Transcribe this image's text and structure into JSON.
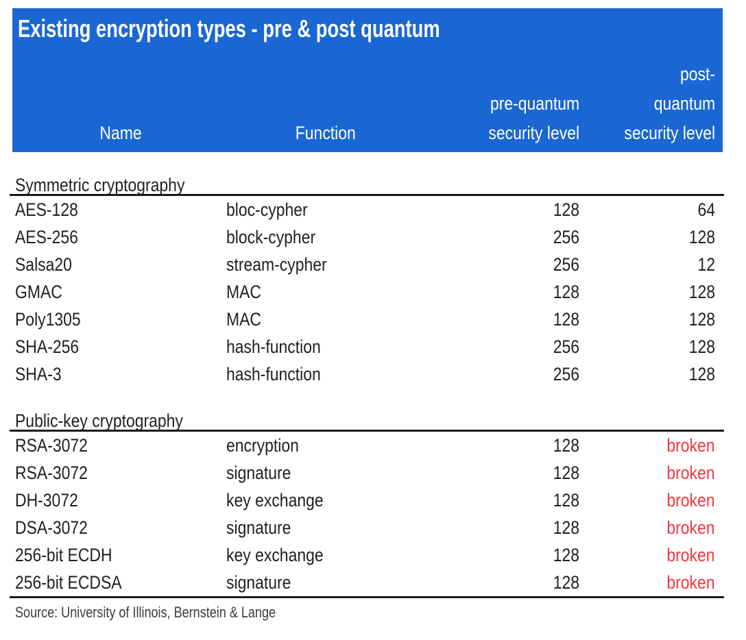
{
  "chart_data": {
    "type": "table",
    "title": "Existing encryption types - pre & post quantum",
    "columns": [
      "Name",
      "Function",
      "pre-quantum security level",
      "post-quantum security level"
    ],
    "header_lines": {
      "name": "Name",
      "function": "Function",
      "pre": [
        "pre-quantum",
        "security level"
      ],
      "post": [
        "post-",
        "quantum",
        "security level"
      ]
    },
    "sections": [
      {
        "label": "Symmetric cryptography",
        "rows": [
          {
            "name": "AES-128",
            "function": "bloc-cypher",
            "pre": "128",
            "post": "64"
          },
          {
            "name": "AES-256",
            "function": "block-cypher",
            "pre": "256",
            "post": "128"
          },
          {
            "name": "Salsa20",
            "function": "stream-cypher",
            "pre": "256",
            "post": "12"
          },
          {
            "name": "GMAC",
            "function": "MAC",
            "pre": "128",
            "post": "128"
          },
          {
            "name": "Poly1305",
            "function": "MAC",
            "pre": "128",
            "post": "128"
          },
          {
            "name": "SHA-256",
            "function": "hash-function",
            "pre": "256",
            "post": "128"
          },
          {
            "name": "SHA-3",
            "function": "hash-function",
            "pre": "256",
            "post": "128"
          }
        ]
      },
      {
        "label": "Public-key cryptography",
        "rows": [
          {
            "name": "RSA-3072",
            "function": "encryption",
            "pre": "128",
            "post": "broken"
          },
          {
            "name": "RSA-3072",
            "function": "signature",
            "pre": "128",
            "post": "broken"
          },
          {
            "name": "DH-3072",
            "function": "key exchange",
            "pre": "128",
            "post": "broken"
          },
          {
            "name": "DSA-3072",
            "function": "signature",
            "pre": "128",
            "post": "broken"
          },
          {
            "name": "256-bit ECDH",
            "function": "key exchange",
            "pre": "128",
            "post": "broken"
          },
          {
            "name": "256-bit ECDSA",
            "function": "signature",
            "pre": "128",
            "post": "broken"
          }
        ]
      }
    ],
    "source": "Source: University of Illinois, Bernstein & Lange"
  },
  "colors": {
    "banner_blue": "#1A67D3",
    "broken_red": "#F8353F",
    "text": "#1F1F1F",
    "rule": "#1A1A1A",
    "source_text": "#3C3C3C"
  }
}
